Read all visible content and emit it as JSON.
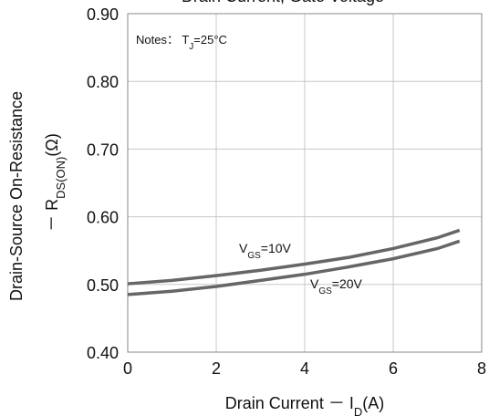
{
  "chart_data": {
    "type": "line",
    "title": "Drain Current, Gate Voltage",
    "xlabel": [
      "Drain Current － I",
      "D",
      "(A)"
    ],
    "ylabel_line1": "Drain-Source On-Resistance",
    "ylabel_line2": [
      "－ R",
      "DS(ON)",
      "(Ω)"
    ],
    "note": [
      "Notes： T",
      "J",
      "=25°C"
    ],
    "x": [
      0,
      1,
      2,
      3,
      4,
      5,
      6,
      7,
      7.5
    ],
    "series": [
      {
        "name": "VGS=10V",
        "color": "#666666",
        "values": [
          0.501,
          0.506,
          0.513,
          0.521,
          0.53,
          0.54,
          0.553,
          0.569,
          0.58
        ]
      },
      {
        "name": "VGS=20V",
        "color": "#666666",
        "values": [
          0.485,
          0.49,
          0.497,
          0.506,
          0.515,
          0.526,
          0.538,
          0.553,
          0.564
        ]
      }
    ],
    "xlim": [
      0,
      8
    ],
    "xticks": [
      0,
      2,
      4,
      6,
      8
    ],
    "ylim": [
      0.4,
      0.9
    ],
    "yticks": [
      {
        "value": 0.4,
        "label": "0.40"
      },
      {
        "value": 0.5,
        "label": "0.50"
      },
      {
        "value": 0.6,
        "label": "0.60"
      },
      {
        "value": 0.7,
        "label": "0.70"
      },
      {
        "value": 0.8,
        "label": "0.80"
      },
      {
        "value": 0.9,
        "label": "0.90"
      }
    ],
    "grid": true
  }
}
